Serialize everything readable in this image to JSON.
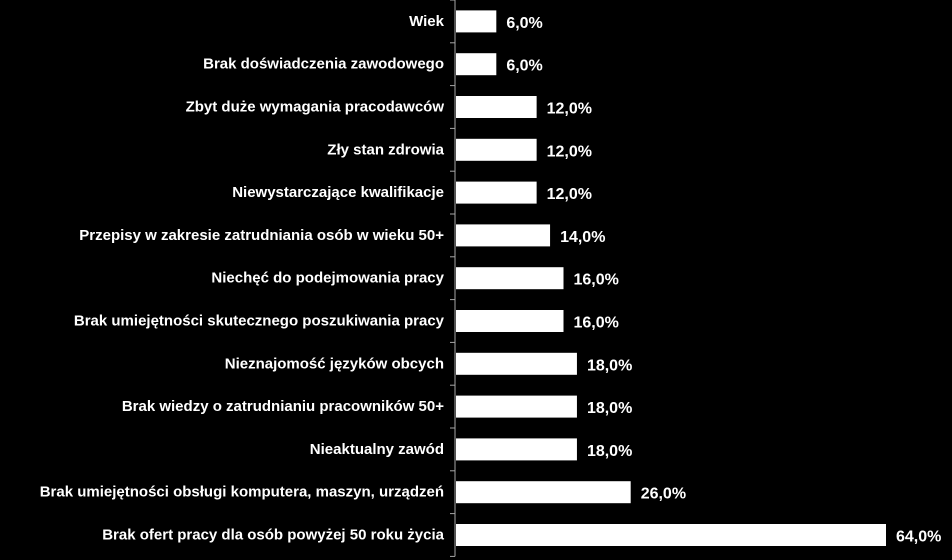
{
  "chart_data": {
    "type": "bar",
    "orientation": "horizontal",
    "title": "",
    "xlabel": "",
    "ylabel": "",
    "xlim": [
      0,
      64
    ],
    "grid": false,
    "legend": "none",
    "colors": {
      "background": "#000000",
      "bar": "#ffffff",
      "axis": "#a6a6a6",
      "text": "#ffffff"
    },
    "categories": [
      "Wiek",
      "Brak doświadczenia zawodowego",
      "Zbyt duże wymagania pracodawców",
      "Zły stan zdrowia",
      "Niewystarczające kwalifikacje",
      "Przepisy w zakresie zatrudniania osób w wieku 50+",
      "Niechęć do podejmowania pracy",
      "Brak umiejętności skutecznego poszukiwania pracy",
      "Nieznajomość języków obcych",
      "Brak wiedzy o zatrudnianiu pracowników 50+",
      "Nieaktualny zawód",
      "Brak umiejętności obsługi komputera, maszyn, urządzeń",
      "Brak ofert pracy dla osób powyżej 50 roku życia"
    ],
    "values": [
      6,
      6,
      12,
      12,
      12,
      14,
      16,
      16,
      18,
      18,
      18,
      26,
      64
    ],
    "value_labels": [
      "6,0%",
      "6,0%",
      "12,0%",
      "12,0%",
      "12,0%",
      "14,0%",
      "16,0%",
      "16,0%",
      "18,0%",
      "18,0%",
      "18,0%",
      "26,0%",
      "64,0%"
    ]
  }
}
